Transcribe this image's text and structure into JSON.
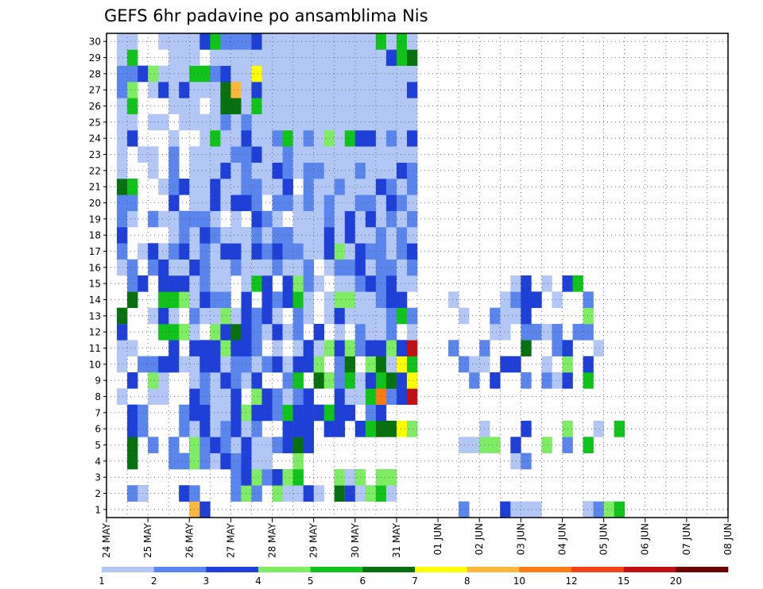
{
  "chart_data": {
    "type": "heatmap",
    "title": "GEFS 6hr padavine po ansamblima Nis",
    "xlabel": "",
    "ylabel": "",
    "x_ticks": [
      "24 MAY",
      "25 MAY",
      "26 MAY",
      "27 MAY",
      "28 MAY",
      "29 MAY",
      "30 MAY",
      "31 MAY",
      "01 JUN",
      "02 JUN",
      "03 JUN",
      "04 JUN",
      "05 JUN",
      "06 JUN",
      "07 JUN",
      "08 JUN"
    ],
    "y_ticks": [
      "1",
      "2",
      "3",
      "4",
      "5",
      "6",
      "7",
      "8",
      "9",
      "10",
      "11",
      "12",
      "13",
      "14",
      "15",
      "16",
      "17",
      "18",
      "19",
      "20",
      "21",
      "22",
      "23",
      "24",
      "25",
      "26",
      "27",
      "28",
      "29",
      "30"
    ],
    "x_range_days": [
      0,
      15
    ],
    "y_range": [
      0.5,
      30.5
    ],
    "grid": true,
    "colorbar": {
      "position": "bottom",
      "levels": [
        "1",
        "2",
        "3",
        "4",
        "5",
        "6",
        "7",
        "8",
        "10",
        "12",
        "15",
        "20"
      ],
      "colors": [
        "#b3c7f7",
        "#5a85ec",
        "#1e3fd8",
        "#7fed63",
        "#0fc31a",
        "#06710e",
        "#ffff00",
        "#fdb73a",
        "#fc7b12",
        "#f2441a",
        "#c20f12",
        "#6a0000"
      ]
    },
    "cells_rows_1_to_30": [
      "s0: 10,8|11,3 s1: 4,1|4,2|8,1|8,3|9,1|10,1|11,1|16,0|16,1|17,2|18,2|18,4|19,5 s2: 2,1|2,3|3,2|3,3|4,4|11,0|12,2|14,3|14,4|14,5|15,1|16,2|21,1 s3: 4,4|6,3|6,7|10,9",
      "s0: 4,1|4,2|5,0|5,1|9,2|9,3|10,1|10,2|14,1|14,2|15,1|15,4|16,2|18,2|18,4|19,1|20,1|21,3|22,1|24,2|24,4|24,6|25,1|25,3|26,1|27,4|28,4|28,5|29,1",
      "s0: 14,1|14,2|15,2|15,3|16,4|17,2|18,3|19,4|20,5|24,3|24,4|25,1|26,4|28,4|29,4",
      "s0: 4,6|8,2|9,2|10,4|11,2|12,1|13,3|14,2|15,3|16,1|17,1|20,4 s1: 9,1|10,2",
      "s0: 4,4|4,6|6,1|6,2|8,2|10,3|10,4|11,2|12,3|13,2|14,1|15,1|15,3|16,1|17,1|18,2|19,3|20,6|21,3 s1: 4,1|5,1|6,4|7,4|9,3|12,4|14,2|16,5",
      "s0: 4,3|5,1|5,2|9,2|10,1|11,3|12,1|13,2|14,3|15,1|16,2|19,3|20,2|20,3|21,3|23,1|23,3|24,3|26,3|27,3|27,5|28,1|28,6|29,6|30,7|31,1|31,4 s1: 6,1|10,3|14,4|17,1|19,5",
      "s0: 4,3|5,2|9,2|10,3|11,3|12,1|13,1|14,3|15,4|16,3|17,3|18,2|19,5|20,3|21,3|22,3|23,5|24,3|25,3|27,2|28,3",
      "s0: 3,1|6,1|7,1|10,3|11,2|12,1|13,1|14,3|16,4|17,3|18,2|19,1|20,2|21,3|24,3|25,1|26,1|27,5|28,1|28,9|29,2|30,3|31,11",
      "s0: 4,3|6,4|7,1|10,1|11,2|12,1|13,3|14,2|15,1|16,3|19,2|20,5|22,6|23,4|24,2|25,5|26,1|27,3|28,5|29,6|30,3|31,7 s1: 5,2|7,3|10,2|12,2|13,1|14,3|16,5",
      "s0: 3,1|5,2|6,2|7,3|8,3|9,1|10,1|11,3|12,3|13,1|14,2|15,2|16,1|17,2|18,3|19,1|20,3|21,3|22,4|24,2|25,6|27,4|28,6|29,1|30,7|31,5 s1: 4,2|5,1|6,1|8,3|9,3|12,1|14,4|16,3",
      "s0: 3,1|4,1|8,3|10,3|11,3|12,3|13,4|14,3|15,3|16,2|18,1|20,1|21,3|22,1|23,4|24,3|25,4|26,2|27,3|28,3|29,4|30,3|31,11 s1: 3,2|6,2|10,6|13,2|14,3|17,1",
      "s0: 3,1|3,3|7,5|8,5|9,4|10,1|12,4|13,3|14,6|15,3|16,2|17,1|18,3|19,1|20,2|22,3|24,1|26,2|27,1|28,1|29,2|31,1 s1: 7,1|8,1|10,2|11,2|12,1|13,2|15,2|16,2",
      "s0: 3,1|3,6|6,1|7,2|7,3|8,1|10,2|11,1|12,1|13,4|14,1|15,3|16,2|17,3|18,1|20,2|21,1|23,1|24,3|25,1|26,1|27,1|28,1|29,2|30,5|31,2 s1: 4,1|7,2|8,1|9,1|10,3|16,4",
      "s0: 4,2|4,6|7,5|8,5|9,4|10,1|11,3|12,2|13,2|15,3|17,3|18,2|19,3|20,5|21,1|23,1|24,4|25,4|26,1|27,1|28,2|29,3|30,3 s1: 3,1|8,1|9,2|10,3|11,3|13,1|16,2",
      "s0: 4,2|5,3|7,3|8,3|9,3|10,1|11,2|12,1|13,1|15,1|16,5|17,3|19,3|20,4|21,2|22,1|24,1|25,1|26,2|27,3|28,2|29,3|30,1|31,1 s1: 9,1|10,3|12,1|14,3|15,5",
      "s0: 3,1|4,2|6,2|7,3|8,1|9,1|10,3|11,2|12,1|13,1|14,2|15,1|16,1|17,1|18,2|19,1|20,1|21,2|23,1|24,2|25,2|26,3|27,1|28,2|29,2|30,1|31,2",
      "s0: 3,2|5,1|6,3|7,1|8,2|9,3|10,1|11,2|12,1|13,3|14,3|15,1|16,3|17,2|18,3|19,2|20,2|21,1|22,1|23,3|24,4|25,1|26,3|27,2|28,2|29,1|30,2|31,3",
      "s0: 3,1|3,3|8,1|9,2|10,1|11,3|12,2|13,1|14,1|15,1|16,2|17,1|18,2|19,2|20,1|21,1|22,1|23,3|24,1|25,3|26,1|27,1|28,2|29,1|30,2|31,1",
      "s0: 3,2|4,1|6,2|7,1|8,1|9,2|10,2|11,2|12,1|14,1|16,3|17,2|18,1|20,1|21,1|22,1|23,2|24,1|25,3|26,1|27,3|28,1|29,2|30,1|31,2",
      "s0: 3,2|4,2|8,3|10,1|11,1|12,3|13,1|14,3|15,3|16,2|18,2|19,2|20,1|21,2|22,1|23,2|24,1|25,1|26,2|27,2|28,1|29,3|30,2|31,1",
      "s0: 3,6|4,5|7,1|8,2|9,3|10,1|11,1|12,3|13,1|14,1|15,2|16,2|17,1|18,1|19,3|21,2|22,1|23,1|24,2|25,1|26,1|27,1|28,3|29,2|30,1|31,2",
      "s0: 3,1|6,1|8,2|10,1|11,1|12,1|13,3|14,1|15,2|16,1|17,1|18,3|19,2|20,1|21,2|22,2|23,1|24,1|25,1|26,2|27,1|28,1|29,1|30,3|31,2",
      "s0: 3,1|5,1|6,1|8,2|10,1|11,1|12,1|13,1|14,2|15,2|16,3|17,1|18,1|19,2|20,1|21,1|22,1|23,1|24,1|25,1|26,1|27,1|28,1|29,1|30,1|31,1",
      "s0: 3,1|4,3|8,1|11,1|12,5|13,1|14,1|15,3|16,1|17,1|18,2|19,5|20,1|21,2|22,1|23,4|24,1|25,5|26,3|27,3|28,1|29,2|30,1|31,3",
      "s0: 3,1|4,1|6,1|7,1|9,1|10,1|11,1|12,1|13,2|14,1|15,2|16,1|17,1|18,1|19,1|20,1|21,1|22,1|23,1|24,1|25,1|26,1|27,1|28,1|29,1|30,1|31,1",
      "s0: 3,1|4,5|8,1|9,1|10,1|12,1|13,6|14,6|15,1|16,5|17,1|18,1|19,1|20,1|21,1|22,1|23,1|24,1|25,1|26,1|27,1|28,1|29,1|30,1|31,1",
      "s0: 3,2|4,4|6,1|7,3|8,1|9,3|10,1|11,1|12,1|13,6|14,8|15,1|16,3|17,1|18,1|19,1|20,1|21,1|22,1|23,1|24,1|25,1|26,1|27,1|28,1|29,1|30,1|31,3",
      "s0: 3,2|4,2|5,3|6,4|7,1|8,1|9,1|10,5|11,5|12,2|13,3|14,1|15,1|16,7|17,1|18,1|19,1|20,1|21,1|22,1|23,1|24,1|25,1|26,1|27,1|28,1|29,1|30,1|31,1",
      "s0: 3,1|4,5|8,1|9,1|10,1|12,1|13,1|14,1|15,1|16,1|17,1|18,1|19,1|20,1|21,1|22,1|23,1|24,1|25,1|26,1|27,1|28,1|29,3|30,5|31,6",
      "s0: 3,1|4,1|7,1|8,1|9,1|10,1|11,3|12,5|13,2|14,2|15,2|16,3|17,1|18,1|19,1|20,1|21,1|22,1|23,1|24,1|25,1|26,1|27,1|28,5|29,1|30,5|31,1"
    ]
  }
}
